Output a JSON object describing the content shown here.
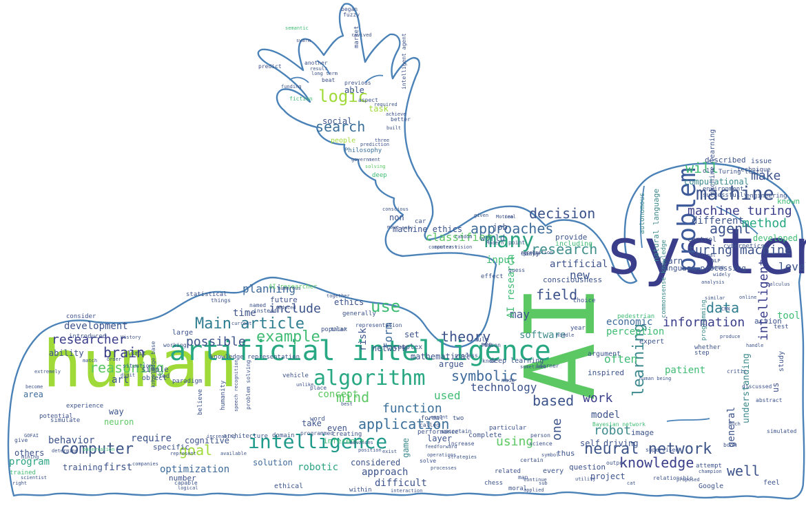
{
  "colors": {
    "outline": "#4a82b8",
    "background": "#ffffff"
  },
  "words": {
    "AI": "AI",
    "system": "system",
    "human": "human",
    "artificial_intelligence": "artificial intelligence",
    "intelligence": "intelligence",
    "problem": "problem",
    "machine": "machine",
    "many": "many",
    "research": "research",
    "algorithm": "algorithm",
    "application": "application",
    "neural_network": "neural network",
    "computer": "computer",
    "knowledge": "knowledge",
    "main_article": "Main article",
    "example": "example",
    "use": "use",
    "logic": "logic",
    "search": "search",
    "learning": "learning",
    "approaches": "approaches",
    "decision": "decision",
    "machine_turing": "machine turing",
    "turing_machine": "turing machine",
    "agent": "agent",
    "will": "will",
    "make": "make",
    "method": "method",
    "data": "data",
    "information": "information",
    "theory": "theory",
    "symbolic": "symbolic",
    "based": "based",
    "work": "work",
    "include": "include",
    "reasoning": "reasoning",
    "brain": "brain",
    "researcher": "researcher",
    "goal": "goal",
    "mind": "mind",
    "function": "function",
    "well": "well",
    "robot": "robot",
    "intelligent": "intelligent",
    "field": "field",
    "planning": "planning",
    "possible": "possible",
    "often": "often",
    "technology": "technology",
    "using": "using",
    "one": "one",
    "new": "new",
    "may": "may",
    "used": "used",
    "form": "form",
    "development": "development",
    "behavior": "behavior",
    "program": "program",
    "classifier": "classifier",
    "task": "task",
    "social": "social",
    "able": "able",
    "people": "people",
    "philosophy": "Philosophy",
    "machine_ethics": "machine ethics",
    "require": "require",
    "optimization": "optimization",
    "robotic": "robotic",
    "approach": "approach",
    "difficult": "difficult",
    "considered": "considered",
    "solution": "solution",
    "first": "first",
    "training": "training",
    "others": "others",
    "art": "art",
    "ability": "ability",
    "area": "area",
    "way": "way",
    "neuron": "neuron",
    "model": "model",
    "driving": "driving",
    "self": "self",
    "project": "project",
    "question": "question",
    "image": "image",
    "general": "general",
    "patient": "patient",
    "understanding": "understanding",
    "natural_language": "natural language",
    "language_processing": "language processing",
    "tool": "tool",
    "level": "level",
    "developed": "developed",
    "different": "different",
    "known": "known",
    "economic": "economic",
    "perception": "perception",
    "software": "software",
    "consciousness": "consciousness",
    "artificial": "artificial",
    "input": "input",
    "job": "job",
    "world": "world",
    "provide": "provide",
    "including": "including",
    "concept": "concept",
    "network": "network",
    "ethics": "ethics",
    "future": "future",
    "time": "time",
    "AI_research": "AI research",
    "AI_researcher": "AI researcher",
    "mathematical": "mathematical",
    "set": "set",
    "argue": "argue",
    "even": "even",
    "take": "take",
    "layer": "layer",
    "inference": "inference",
    "game": "game",
    "cognitive": "cognitive",
    "specific": "specific",
    "number": "number",
    "simple": "simple",
    "led": "led",
    "deep_learning": "deep learning",
    "computational": "computational",
    "learn": "learn",
    "described": "described",
    "issue": "issue",
    "technique": "technique",
    "environment": "environment",
    "control": "control",
    "cybernetics": "cybernetics",
    "action": "action",
    "test": "test",
    "study": "study",
    "us": "us",
    "began": "began",
    "market": "market",
    "intelligent_agent": "intelligent agent",
    "fuzzy": "fuzzy",
    "another": "another",
    "predict": "predict",
    "result": "result",
    "beat": "beat",
    "previous": "previous",
    "aspect": "aspect",
    "fiction": "fiction",
    "required": "required",
    "better": "better",
    "built": "built",
    "three": "three",
    "government": "government",
    "prediction": "prediction",
    "solving": "solving",
    "deep": "deep",
    "player": "player",
    "car": "car",
    "non": "non",
    "complex": "complex",
    "popular": "popular",
    "humanity": "humanity",
    "paradigm": "paradigm",
    "large": "large",
    "limit": "limit",
    "vehicle": "vehicle",
    "generally": "generally",
    "formal": "formal",
    "performance": "performance",
    "expert": "expert",
    "inspired": "inspired",
    "choice": "choice",
    "year": "year",
    "work2": "risk",
    "complete": "complete",
    "related": "related",
    "chess": "chess",
    "moral": "moral",
    "Google": "Google",
    "feel": "feel",
    "book": "book",
    "ethical": "ethical",
    "within": "within",
    "creating": "creating",
    "position": "position",
    "thus": "thus",
    "every": "every",
    "attempt": "attempt",
    "search_algorithm": "search algorithm",
    "introduced": "introduced",
    "simulate": "simulate",
    "consider": "consider",
    "experience": "experience",
    "potential": "potential",
    "trained": "trained",
    "give": "give",
    "knowledge_base": "knowledge base",
    "object": "object",
    "believe": "believe",
    "architecture": "architecture",
    "domain": "domain",
    "statistical": "statistical",
    "system_small": "system",
    "instead": "instead",
    "knowledge_rep": "knowledge representation",
    "working": "working",
    "situation": "situation",
    "step": "step",
    "whether": "whether",
    "critic": "critic",
    "abstract": "abstract",
    "discussed": "discussed",
    "simulated": "simulated",
    "pedestrian": "pedestrian",
    "argument": "argument",
    "define": "define",
    "general_intelligence": "general intelligence",
    "machine_learning": "machine learning",
    "autonomous": "autonomous",
    "programming": "programming",
    "commonsense_knowledge": "commonsense knowledge",
    "successfully": "successfully",
    "engineering": "engineering",
    "old": "old",
    "early": "early",
    "see": "see",
    "learner": "learner",
    "effect": "effect",
    "guess": "guess",
    "reason": "reason",
    "process": "process",
    "know": "know",
    "rule": "rule",
    "made": "made",
    "particular": "particular",
    "two": "two",
    "called": "called",
    "increase": "increase",
    "surface": "surface",
    "uncertain": "uncertain",
    "word": "word",
    "place": "place",
    "think": "think",
    "representation": "representation",
    "called2": "capable",
    "Motion": "Motion",
    "Modern": "Modern",
    "point": "point",
    "given": "given",
    "real": "real",
    "random": "random",
    "contrast": "contrast",
    "moves": "move",
    "easy": "easy",
    "semantic": "semantic",
    "swarm": "swarm",
    "revived": "revived",
    "funding": "funding",
    "achieve": "achieve",
    "rather": "rather",
    "recognition": "recognition",
    "NLP": "NLP",
    "calculus": "calculus",
    "online": "online",
    "similar": "similar",
    "analysis": "analysis",
    "Turing_test": "Turing test",
    "map": "map",
    "certain": "certain",
    "science": "science",
    "person": "person",
    "thing": "things",
    "named": "named",
    "reduced": "reduced",
    "current": "current",
    "History": "History",
    "extremely": "extremely",
    "match": "match",
    "order": "order",
    "digit": "digit",
    "become": "become",
    "little": "little",
    "mining": "mining",
    "scientist": "scientist",
    "right": "right",
    "GOFAI": "GOFAI",
    "determine": "determine",
    "observation": "observation",
    "problem_solving": "problem solving",
    "speech_recognition": "speech recognition",
    "programmed": "programmed",
    "advances": "advances",
    "exist": "exist",
    "feedforward": "feedforward",
    "amount": "amount",
    "best": "best",
    "interaction": "interaction",
    "solve": "solve",
    "operations": "operations",
    "strategies": "strategies",
    "processes": "processes",
    "sub": "sub",
    "continue": "continue",
    "applied": "applied",
    "output": "output",
    "supervised": "supervised",
    "champion": "champion",
    "relationship": "relationship",
    "proposed": "proposed",
    "utility": "utility",
    "middle": "middle",
    "bayesian_network": "Bayesian network",
    "kind": "kind",
    "unlike": "unlike",
    "numerous": "numerous",
    "together": "together",
    "cause": "cause",
    "lead": "lead",
    "company": "companies",
    "logical": "logical",
    "increasing": "increasing",
    "represent": "represent",
    "available": "available",
    "among": "among",
    "widely": "widely",
    "rational": "rational",
    "conscious": "conscious",
    "long_term": "long term",
    "CNN": "CNN",
    "human_being": "human being",
    "handle": "handle",
    "produce": "produce",
    "Much": "Much",
    "vision": "computer vision",
    "neuronet": "neural",
    "sometimes": "sometimes",
    "cat": "cat",
    "symbol": "symbol"
  }
}
